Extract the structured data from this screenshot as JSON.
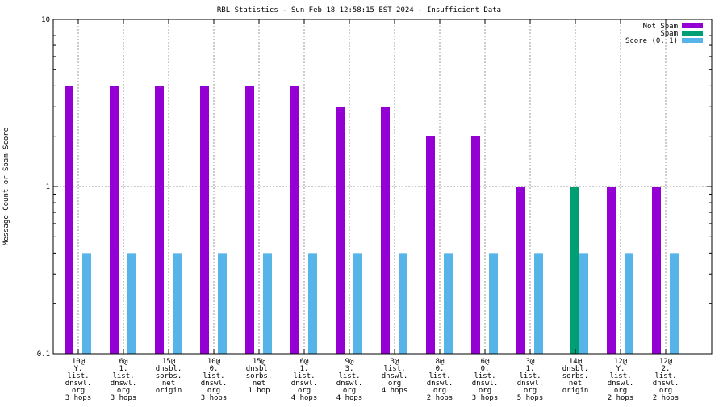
{
  "chart_data": {
    "type": "bar",
    "title": "RBL Statistics - Sun Feb 18 12:58:15 EST 2024 - Insufficient Data",
    "xlabel": "",
    "ylabel": "Message Count or Spam Score",
    "yscale": "log",
    "ylim": [
      0.1,
      10
    ],
    "yticks": [
      {
        "v": 0.1,
        "label": "0.1"
      },
      {
        "v": 1,
        "label": "1"
      },
      {
        "v": 10,
        "label": "10"
      }
    ],
    "grid": true,
    "legend_position": "top-right",
    "categories": [
      [
        "10@",
        "Y.",
        "list.",
        "dnswl.",
        "org",
        "3 hops"
      ],
      [
        "6@",
        "1.",
        "list.",
        "dnswl.",
        "org",
        "3 hops"
      ],
      [
        "15@",
        "dnsbl.",
        "sorbs.",
        "net",
        "origin"
      ],
      [
        "10@",
        "0.",
        "list.",
        "dnswl.",
        "org",
        "3 hops"
      ],
      [
        "15@",
        "dnsbl.",
        "sorbs.",
        "net",
        "1 hop"
      ],
      [
        "6@",
        "1.",
        "list.",
        "dnswl.",
        "org",
        "4 hops"
      ],
      [
        "9@",
        "3.",
        "list.",
        "dnswl.",
        "org",
        "4 hops"
      ],
      [
        "3@",
        "list.",
        "dnswl.",
        "org",
        "4 hops"
      ],
      [
        "8@",
        "0.",
        "list.",
        "dnswl.",
        "org",
        "2 hops"
      ],
      [
        "6@",
        "0.",
        "list.",
        "dnswl.",
        "org",
        "3 hops"
      ],
      [
        "3@",
        "1.",
        "list.",
        "dnswl.",
        "org",
        "5 hops"
      ],
      [
        "14@",
        "dnsbl.",
        "sorbs.",
        "net",
        "origin"
      ],
      [
        "12@",
        "Y.",
        "list.",
        "dnswl.",
        "org",
        "2 hops"
      ],
      [
        "12@",
        "2.",
        "list.",
        "dnswl.",
        "org",
        "2 hops"
      ]
    ],
    "series": [
      {
        "name": "Not Spam",
        "color": "#9400d3",
        "values": [
          4,
          4,
          4,
          4,
          4,
          4,
          3,
          3,
          2,
          2,
          1,
          0,
          1,
          1
        ]
      },
      {
        "name": "Spam",
        "color": "#009e73",
        "values": [
          0,
          0,
          0,
          0,
          0,
          0,
          0,
          0,
          0,
          0,
          0,
          1,
          0,
          0
        ]
      },
      {
        "name": "Score (0..1)",
        "color": "#56b4e9",
        "values": [
          0.4,
          0.4,
          0.4,
          0.4,
          0.4,
          0.4,
          0.4,
          0.4,
          0.4,
          0.4,
          0.4,
          0.4,
          0.4,
          0.4
        ]
      }
    ]
  }
}
